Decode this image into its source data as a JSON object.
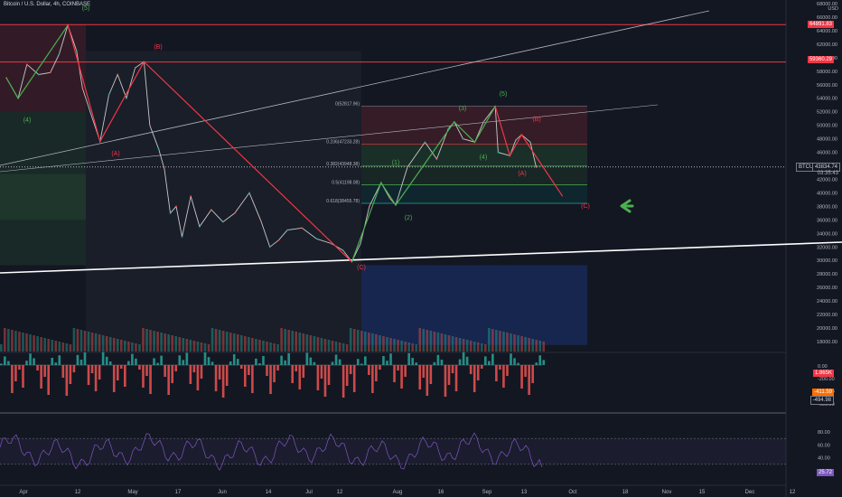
{
  "header": {
    "title": "Bitcoin / U.S. Dollar, 4h, COINBASE",
    "currency": "USD"
  },
  "price_tags": {
    "red_top": "64891.83",
    "red_second": "59360.29",
    "symbol": "BTCUSD",
    "last": "43834.74",
    "last_sub": "03:35:43",
    "volume": "1.865K",
    "osc1_a": "-411.59",
    "osc1_b": "-494.98",
    "rsi": "25.72"
  },
  "chart_data": {
    "type": "line",
    "title": "Bitcoin / U.S. Dollar, 4h, COINBASE",
    "y_axis": {
      "range": [
        0,
        68000
      ],
      "ticks": [
        "68000.00",
        "66000.00",
        "64000.00",
        "62000.00",
        "60000.00",
        "58000.00",
        "56000.00",
        "54000.00",
        "52000.00",
        "50000.00",
        "48000.00",
        "46000.00",
        "44000.00",
        "42000.00",
        "40000.00",
        "38000.00",
        "36000.00",
        "34000.00",
        "32000.00",
        "30000.00",
        "28000.00",
        "26000.00",
        "24000.00",
        "22000.00",
        "20000.00",
        "18000.00"
      ]
    },
    "x_axis": {
      "ticks": [
        "Apr",
        "12",
        "May",
        "17",
        "Jun",
        "14",
        "Jul",
        "12",
        "Aug",
        "16",
        "Sep",
        "13",
        "Oct",
        "18",
        "Nov",
        "15",
        "Dec",
        "12"
      ]
    },
    "horizontal_levels": [
      {
        "value": 64891.83,
        "color": "#f23645"
      },
      {
        "value": 59360.29,
        "color": "#f23645"
      },
      {
        "value": 43834.74,
        "color": "#b2b5be",
        "style": "dotted"
      }
    ],
    "fib_levels": [
      {
        "label": "0(52817.96)",
        "value": 52817.96
      },
      {
        "label": "0.236(47233.28)",
        "value": 47233.28
      },
      {
        "label": "0.382(43948.38)",
        "value": 43948.38
      },
      {
        "label": "0.5(41198.08)",
        "value": 41198.08
      },
      {
        "label": "0.618(38455.78)",
        "value": 38455.78
      }
    ],
    "price_series": [
      {
        "x": "Mar 24",
        "y": 57000
      },
      {
        "x": "Mar 28",
        "y": 54000
      },
      {
        "x": "Mar 31",
        "y": 59000
      },
      {
        "x": "Apr 4",
        "y": 57500
      },
      {
        "x": "Apr 8",
        "y": 57800
      },
      {
        "x": "Apr 11",
        "y": 60500
      },
      {
        "x": "Apr 14",
        "y": 64800
      },
      {
        "x": "Apr 17",
        "y": 61000
      },
      {
        "x": "Apr 19",
        "y": 55500
      },
      {
        "x": "Apr 22",
        "y": 51500
      },
      {
        "x": "Apr 25",
        "y": 47600
      },
      {
        "x": "Apr 28",
        "y": 54500
      },
      {
        "x": "May 1",
        "y": 57500
      },
      {
        "x": "May 4",
        "y": 54000
      },
      {
        "x": "May 7",
        "y": 58500
      },
      {
        "x": "May 10",
        "y": 59400
      },
      {
        "x": "May 12",
        "y": 50000
      },
      {
        "x": "May 15",
        "y": 46500
      },
      {
        "x": "May 17",
        "y": 43500
      },
      {
        "x": "May 19",
        "y": 37000
      },
      {
        "x": "May 21",
        "y": 38000
      },
      {
        "x": "May 23",
        "y": 33500
      },
      {
        "x": "May 26",
        "y": 39500
      },
      {
        "x": "May 29",
        "y": 35000
      },
      {
        "x": "Jun 2",
        "y": 37500
      },
      {
        "x": "Jun 6",
        "y": 35700
      },
      {
        "x": "Jun 10",
        "y": 37000
      },
      {
        "x": "Jun 15",
        "y": 40000
      },
      {
        "x": "Jun 19",
        "y": 35800
      },
      {
        "x": "Jun 22",
        "y": 32000
      },
      {
        "x": "Jun 25",
        "y": 33000
      },
      {
        "x": "Jun 28",
        "y": 34500
      },
      {
        "x": "Jul 3",
        "y": 34800
      },
      {
        "x": "Jul 8",
        "y": 33200
      },
      {
        "x": "Jul 13",
        "y": 32500
      },
      {
        "x": "Jul 17",
        "y": 31500
      },
      {
        "x": "Jul 20",
        "y": 29800
      },
      {
        "x": "Jul 23",
        "y": 32500
      },
      {
        "x": "Jul 26",
        "y": 38000
      },
      {
        "x": "Jul 30",
        "y": 41500
      },
      {
        "x": "Aug 2",
        "y": 39200
      },
      {
        "x": "Aug 4",
        "y": 38200
      },
      {
        "x": "Aug 8",
        "y": 43800
      },
      {
        "x": "Aug 14",
        "y": 47500
      },
      {
        "x": "Aug 18",
        "y": 45000
      },
      {
        "x": "Aug 22",
        "y": 49500
      },
      {
        "x": "Aug 24",
        "y": 50500
      },
      {
        "x": "Aug 27",
        "y": 48000
      },
      {
        "x": "Aug 31",
        "y": 47500
      },
      {
        "x": "Sep 3",
        "y": 50500
      },
      {
        "x": "Sep 7",
        "y": 52800
      },
      {
        "x": "Sep 8",
        "y": 46000
      },
      {
        "x": "Sep 12",
        "y": 45500
      },
      {
        "x": "Sep 14",
        "y": 47800
      },
      {
        "x": "Sep 16",
        "y": 48600
      },
      {
        "x": "Sep 19",
        "y": 47500
      },
      {
        "x": "Sep 21",
        "y": 43800
      }
    ],
    "wave_labels": [
      {
        "label": "(5)",
        "color": "#4caf50"
      },
      {
        "label": "(4)",
        "color": "#4caf50"
      },
      {
        "label": "(A)",
        "color": "#f23645"
      },
      {
        "label": "(B)",
        "color": "#f23645"
      },
      {
        "label": "(C)",
        "color": "#f23645"
      },
      {
        "label": "(1)",
        "color": "#4caf50"
      },
      {
        "label": "(2)",
        "color": "#4caf50"
      },
      {
        "label": "(3)",
        "color": "#4caf50"
      },
      {
        "label": "(4)",
        "color": "#4caf50"
      },
      {
        "label": "(5)",
        "color": "#4caf50"
      },
      {
        "label": "(A)",
        "color": "#f23645"
      },
      {
        "label": "(B)",
        "color": "#f23645"
      },
      {
        "label": "(C)",
        "color": "#f23645"
      }
    ],
    "projection": [
      {
        "x": "Sep 16",
        "y": 48600
      },
      {
        "x": "Sep 30",
        "y": 39500
      }
    ],
    "oscillator": {
      "ticks": [
        "0.00",
        "-200.00",
        "-400.00",
        "-600.00"
      ]
    },
    "rsi": {
      "ticks": [
        "80.00",
        "60.00",
        "40.00",
        "20.00"
      ],
      "value": 25.72
    },
    "colors": {
      "background": "#131722",
      "bull_wave": "#4caf50",
      "bear_wave": "#f23645",
      "rsi_line": "#7e57c2",
      "arrow": "#4caf50"
    },
    "grid": false,
    "legend": "none"
  }
}
